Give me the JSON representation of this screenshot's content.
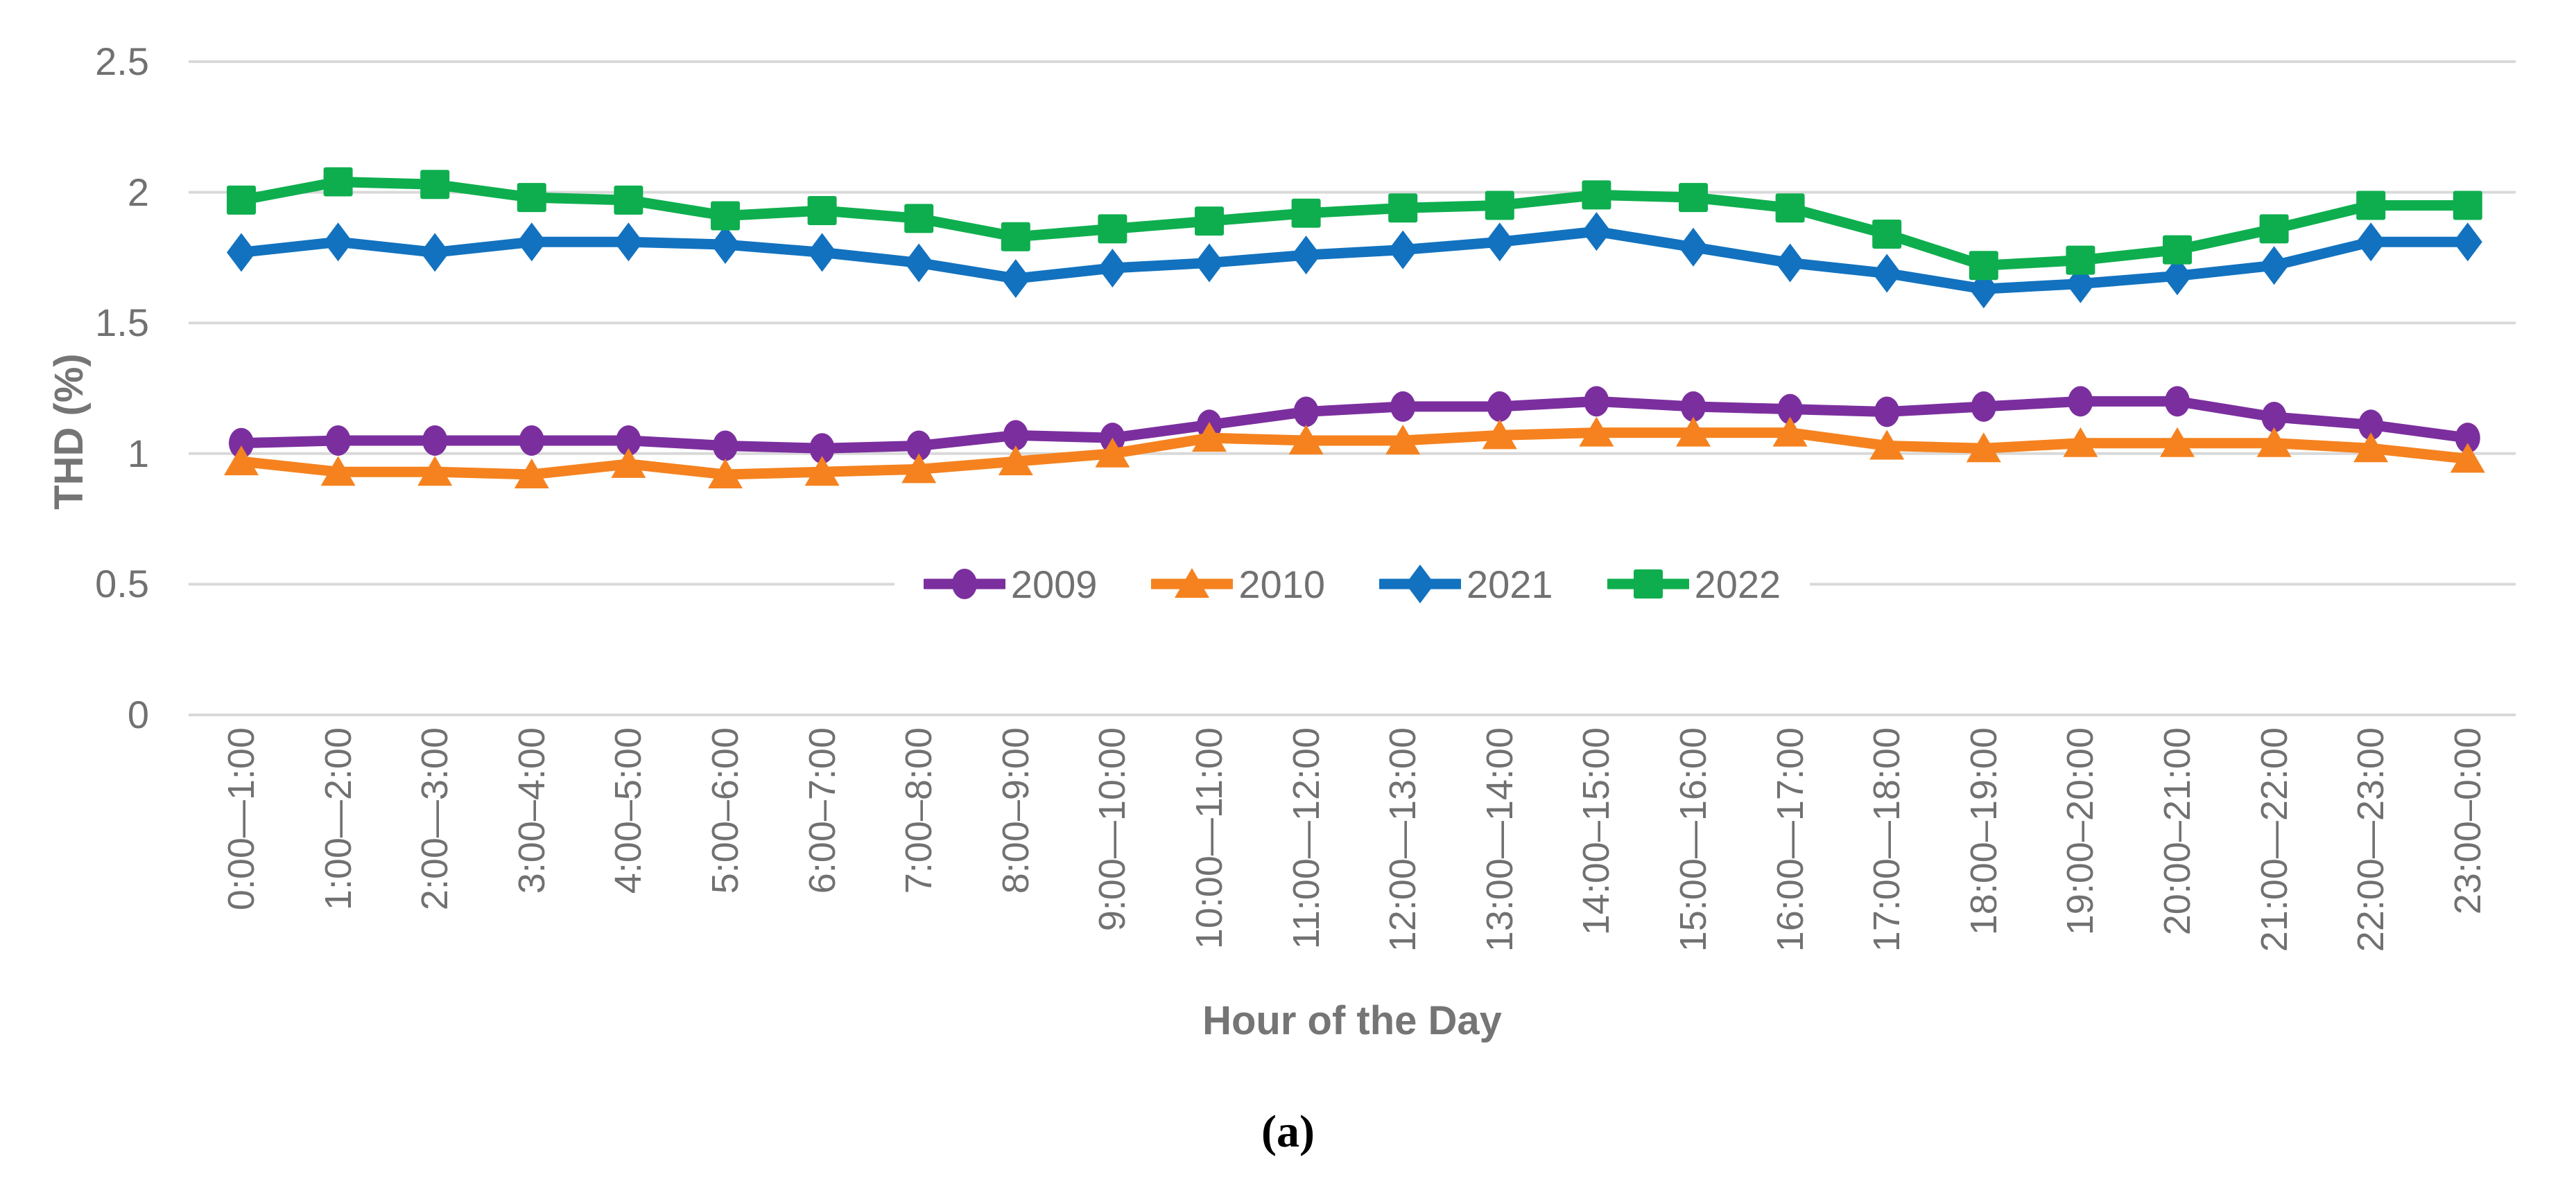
{
  "caption": "(a)",
  "colors": {
    "background": "#ffffff",
    "gridline": "#d9d9d9",
    "tick_text": "#717171",
    "axis_title_text": "#757575",
    "caption_text": "#000000"
  },
  "chart_data": {
    "type": "line",
    "title": "",
    "xlabel": "Hour of the Day",
    "ylabel": "THD (%)",
    "ylim": [
      0,
      2.5
    ],
    "ytick_values": [
      0,
      0.5,
      1,
      1.5,
      2,
      2.5
    ],
    "ytick_labels": [
      "0",
      "0.5",
      "1",
      "1.5",
      "2",
      "2.5"
    ],
    "grid": "horizontal-only",
    "legend_position": "center, overlaid on 0.5 gridline",
    "x_tick_rotation_degrees": 90,
    "categories": [
      "0:00—1:00",
      "1:00—2:00",
      "2:00—3:00",
      "3:00–4:00",
      "4:00–5:00",
      "5:00–6:00",
      "6:00–7:00",
      "7:00–8:00",
      "8:00–9:00",
      "9:00—10:00",
      "10:00—11:00",
      "11:00—12:00",
      "12:00—13:00",
      "13:00—14:00",
      "14:00–15:00",
      "15:00—16:00",
      "16:00—17:00",
      "17:00—18:00",
      "18:00–19:00",
      "19:00–20:00",
      "20:00–21:00",
      "21:00—22:00",
      "22:00—23:00",
      "23:00–0:00"
    ],
    "series": [
      {
        "name": "2009",
        "color": "#7b2f9e",
        "marker": "circle",
        "values": [
          1.04,
          1.05,
          1.05,
          1.05,
          1.05,
          1.03,
          1.02,
          1.03,
          1.07,
          1.06,
          1.11,
          1.16,
          1.18,
          1.18,
          1.2,
          1.18,
          1.17,
          1.16,
          1.18,
          1.2,
          1.2,
          1.14,
          1.11,
          1.06
        ]
      },
      {
        "name": "2010",
        "color": "#f5821f",
        "marker": "triangle",
        "values": [
          0.97,
          0.93,
          0.93,
          0.92,
          0.96,
          0.92,
          0.93,
          0.94,
          0.97,
          1.0,
          1.06,
          1.05,
          1.05,
          1.07,
          1.08,
          1.08,
          1.08,
          1.03,
          1.02,
          1.04,
          1.04,
          1.04,
          1.02,
          0.98
        ]
      },
      {
        "name": "2021",
        "color": "#1272bf",
        "marker": "diamond",
        "values": [
          1.77,
          1.81,
          1.77,
          1.81,
          1.81,
          1.8,
          1.77,
          1.73,
          1.67,
          1.71,
          1.73,
          1.76,
          1.78,
          1.81,
          1.85,
          1.79,
          1.73,
          1.69,
          1.63,
          1.65,
          1.68,
          1.72,
          1.81,
          1.81
        ]
      },
      {
        "name": "2022",
        "color": "#0eae4e",
        "marker": "square",
        "values": [
          1.97,
          2.04,
          2.03,
          1.98,
          1.97,
          1.91,
          1.93,
          1.9,
          1.83,
          1.86,
          1.89,
          1.92,
          1.94,
          1.95,
          1.99,
          1.98,
          1.94,
          1.84,
          1.72,
          1.74,
          1.78,
          1.86,
          1.95,
          1.95
        ]
      }
    ]
  }
}
